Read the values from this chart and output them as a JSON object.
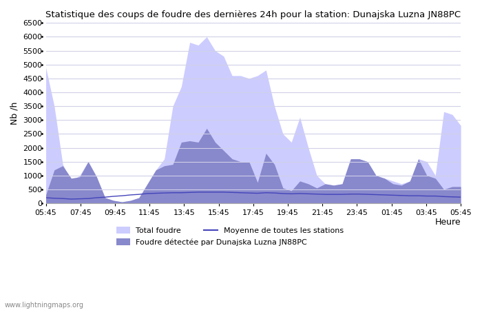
{
  "title": "Statistique des coups de foudre des dernières 24h pour la station: Dunajska Luzna JN88PC",
  "xlabel": "Heure",
  "ylabel": "Nb /h",
  "ylim": [
    0,
    6500
  ],
  "yticks": [
    0,
    500,
    1000,
    1500,
    2000,
    2500,
    3000,
    3500,
    4000,
    4500,
    5000,
    5500,
    6000,
    6500
  ],
  "xtick_labels": [
    "05:45",
    "07:45",
    "09:45",
    "11:45",
    "13:45",
    "15:45",
    "17:45",
    "19:45",
    "21:45",
    "23:45",
    "01:45",
    "03:45",
    "05:45"
  ],
  "background_color": "#ffffff",
  "plot_bg_color": "#ffffff",
  "grid_color": "#d0d0e8",
  "total_color": "#ccccff",
  "detected_color": "#8888cc",
  "moyenne_color": "#4444bb",
  "watermark": "www.lightningmaps.org",
  "legend_total": "Total foudre",
  "legend_moyenne": "Moyenne de toutes les stations",
  "legend_detected": "Foudre détectée par Dunajska Luzna JN88PC",
  "total_foudre": [
    4900,
    3500,
    1400,
    800,
    1000,
    1500,
    950,
    200,
    100,
    50,
    100,
    200,
    700,
    1200,
    1600,
    3500,
    4200,
    5800,
    5700,
    6000,
    5500,
    5300,
    4600,
    4600,
    4500,
    4600,
    4800,
    3500,
    2500,
    2200,
    3100,
    2000,
    1000,
    700,
    650,
    700,
    1600,
    1600,
    1500,
    1000,
    900,
    800,
    700,
    800,
    1600,
    1500,
    1000,
    3300,
    3200,
    2800
  ],
  "detected": [
    300,
    1200,
    1350,
    900,
    950,
    1500,
    950,
    200,
    100,
    50,
    100,
    200,
    700,
    1200,
    1350,
    1400,
    2200,
    2250,
    2200,
    2700,
    2200,
    1900,
    1600,
    1500,
    1500,
    750,
    1800,
    1400,
    550,
    450,
    800,
    700,
    550,
    700,
    650,
    700,
    1600,
    1600,
    1500,
    1000,
    900,
    700,
    650,
    800,
    1600,
    1000,
    900,
    500,
    600,
    600
  ],
  "moyenne": [
    200,
    180,
    170,
    150,
    160,
    170,
    200,
    220,
    250,
    270,
    300,
    320,
    350,
    360,
    370,
    380,
    380,
    390,
    400,
    400,
    400,
    400,
    390,
    380,
    370,
    360,
    380,
    370,
    350,
    340,
    350,
    340,
    330,
    320,
    320,
    320,
    330,
    330,
    320,
    310,
    300,
    290,
    280,
    270,
    270,
    260,
    260,
    240,
    230,
    220
  ]
}
